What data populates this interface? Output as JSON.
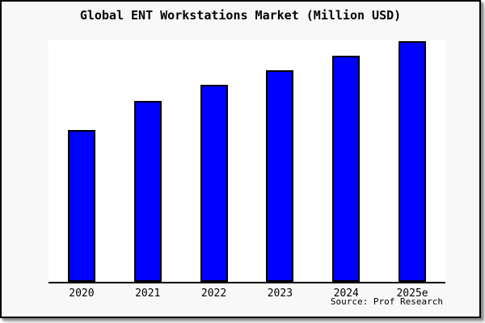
{
  "chart_data": {
    "type": "bar",
    "title": "Global ENT Workstations Market (Million USD)",
    "categories": [
      "2020",
      "2021",
      "2022",
      "2023",
      "2024",
      "2025e"
    ],
    "values": [
      63.1,
      75.2,
      81.9,
      87.9,
      94.0,
      100.0
    ],
    "scale_note": "relative units; no y-axis tick labels shown on chart, 2025e bar = 100",
    "bar_heights_pct_of_plot": [
      62.9,
      74.9,
      81.6,
      87.6,
      93.7,
      99.7
    ],
    "xlabel": "",
    "ylabel": "",
    "ylim": [
      0,
      100.3
    ],
    "grid": false,
    "legend": null,
    "y_axis_visible": false,
    "bar_color": "#0000fe",
    "bar_border_color": "#000000",
    "axis_line_color": "#000000",
    "plot_bg": "#ffffff",
    "figure_bg": "#f8f8f8"
  },
  "source_credit": "Source: Prof Research"
}
